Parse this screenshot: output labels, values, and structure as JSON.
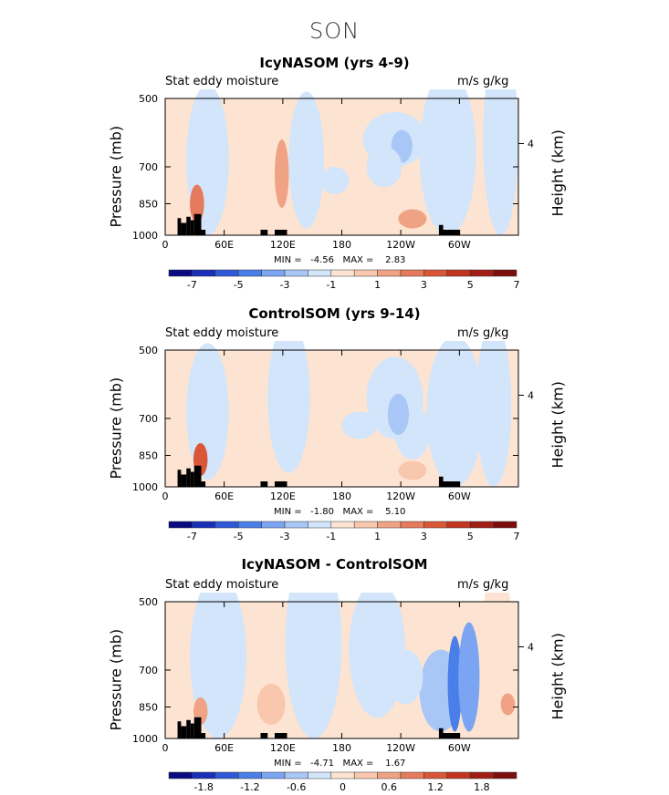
{
  "page_title": "SON",
  "chart_data": [
    {
      "type": "heatmap",
      "title": "IcyNASOM (yrs 4-9)",
      "field_label": "Stat eddy moisture",
      "units": "m/s g/kg",
      "ylabel": "Pressure (mb)",
      "y2label": "Height (km)",
      "y_ticks": [
        "500",
        "700",
        "850",
        "1000"
      ],
      "y2_ticks": [
        "4"
      ],
      "x_ticks": [
        "0",
        "60E",
        "120E",
        "180",
        "120W",
        "60W"
      ],
      "min_label": "MIN =   -4.56   MAX =    2.83",
      "min": -4.56,
      "max": 2.83,
      "colorbar_ticks": [
        "-7",
        "-5",
        "-3",
        "-1",
        "1",
        "3",
        "5",
        "7"
      ]
    },
    {
      "type": "heatmap",
      "title": "ControlSOM (yrs 9-14)",
      "field_label": "Stat eddy moisture",
      "units": "m/s g/kg",
      "ylabel": "Pressure (mb)",
      "y2label": "Height (km)",
      "y_ticks": [
        "500",
        "700",
        "850",
        "1000"
      ],
      "y2_ticks": [
        "4"
      ],
      "x_ticks": [
        "0",
        "60E",
        "120E",
        "180",
        "120W",
        "60W"
      ],
      "min_label": "MIN =   -1.80   MAX =    5.10",
      "min": -1.8,
      "max": 5.1,
      "colorbar_ticks": [
        "-7",
        "-5",
        "-3",
        "-1",
        "1",
        "3",
        "5",
        "7"
      ]
    },
    {
      "type": "heatmap",
      "title": "IcyNASOM - ControlSOM",
      "field_label": "Stat eddy moisture",
      "units": "m/s g/kg",
      "ylabel": "Pressure (mb)",
      "y2label": "Height (km)",
      "y_ticks": [
        "500",
        "700",
        "850",
        "1000"
      ],
      "y2_ticks": [
        "4"
      ],
      "x_ticks": [
        "0",
        "60E",
        "120E",
        "180",
        "120W",
        "60W"
      ],
      "min_label": "MIN =   -4.71   MAX =    1.67",
      "min": -4.71,
      "max": 1.67,
      "colorbar_ticks": [
        "-1.8",
        "-1.2",
        "-0.6",
        "0",
        "0.6",
        "1.2",
        "1.8"
      ]
    }
  ],
  "colorbar_colors": [
    "#0a0a82",
    "#1a2fb8",
    "#2f59d6",
    "#4a7ee8",
    "#7ba4f2",
    "#a8c6f6",
    "#d2e5fa",
    "#fde4d2",
    "#f8c7ad",
    "#f0a285",
    "#e67a5c",
    "#d95637",
    "#c23520",
    "#a11e14",
    "#7d0e0e"
  ]
}
